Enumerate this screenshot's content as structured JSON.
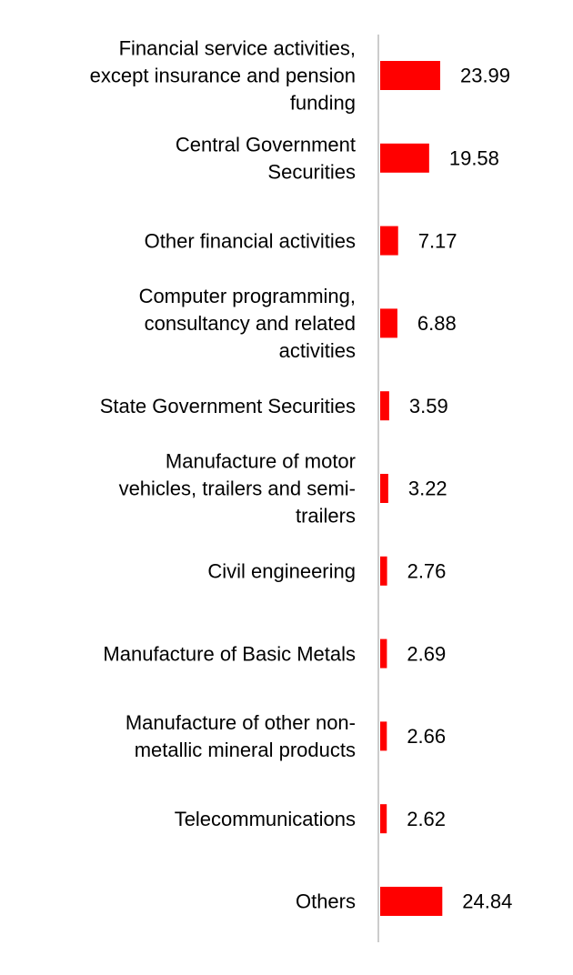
{
  "chart_data": {
    "type": "bar",
    "orientation": "horizontal",
    "title": "",
    "xlabel": "",
    "ylabel": "",
    "xlim": [
      0,
      25
    ],
    "grid": false,
    "bar_color": "#ff0000",
    "axis_color": "#cccccc",
    "categories": [
      [
        "Financial service activities,",
        "except insurance and pension",
        "funding"
      ],
      [
        "Central Government",
        "Securities"
      ],
      [
        "Other financial activities"
      ],
      [
        "Computer programming,",
        "consultancy and related",
        "activities"
      ],
      [
        "State Government Securities"
      ],
      [
        "Manufacture of motor",
        "vehicles, trailers and semi-",
        "trailers"
      ],
      [
        "Civil engineering"
      ],
      [
        "Manufacture of Basic Metals"
      ],
      [
        "Manufacture of other non-",
        "metallic mineral products"
      ],
      [
        "Telecommunications"
      ],
      [
        "Others"
      ]
    ],
    "values": [
      23.99,
      19.58,
      7.17,
      6.88,
      3.59,
      3.22,
      2.76,
      2.69,
      2.66,
      2.62,
      24.84
    ],
    "value_labels": [
      "23.99",
      "19.58",
      "7.17",
      "6.88",
      "3.59",
      "3.22",
      "2.76",
      "2.69",
      "2.66",
      "2.62",
      "24.84"
    ]
  }
}
